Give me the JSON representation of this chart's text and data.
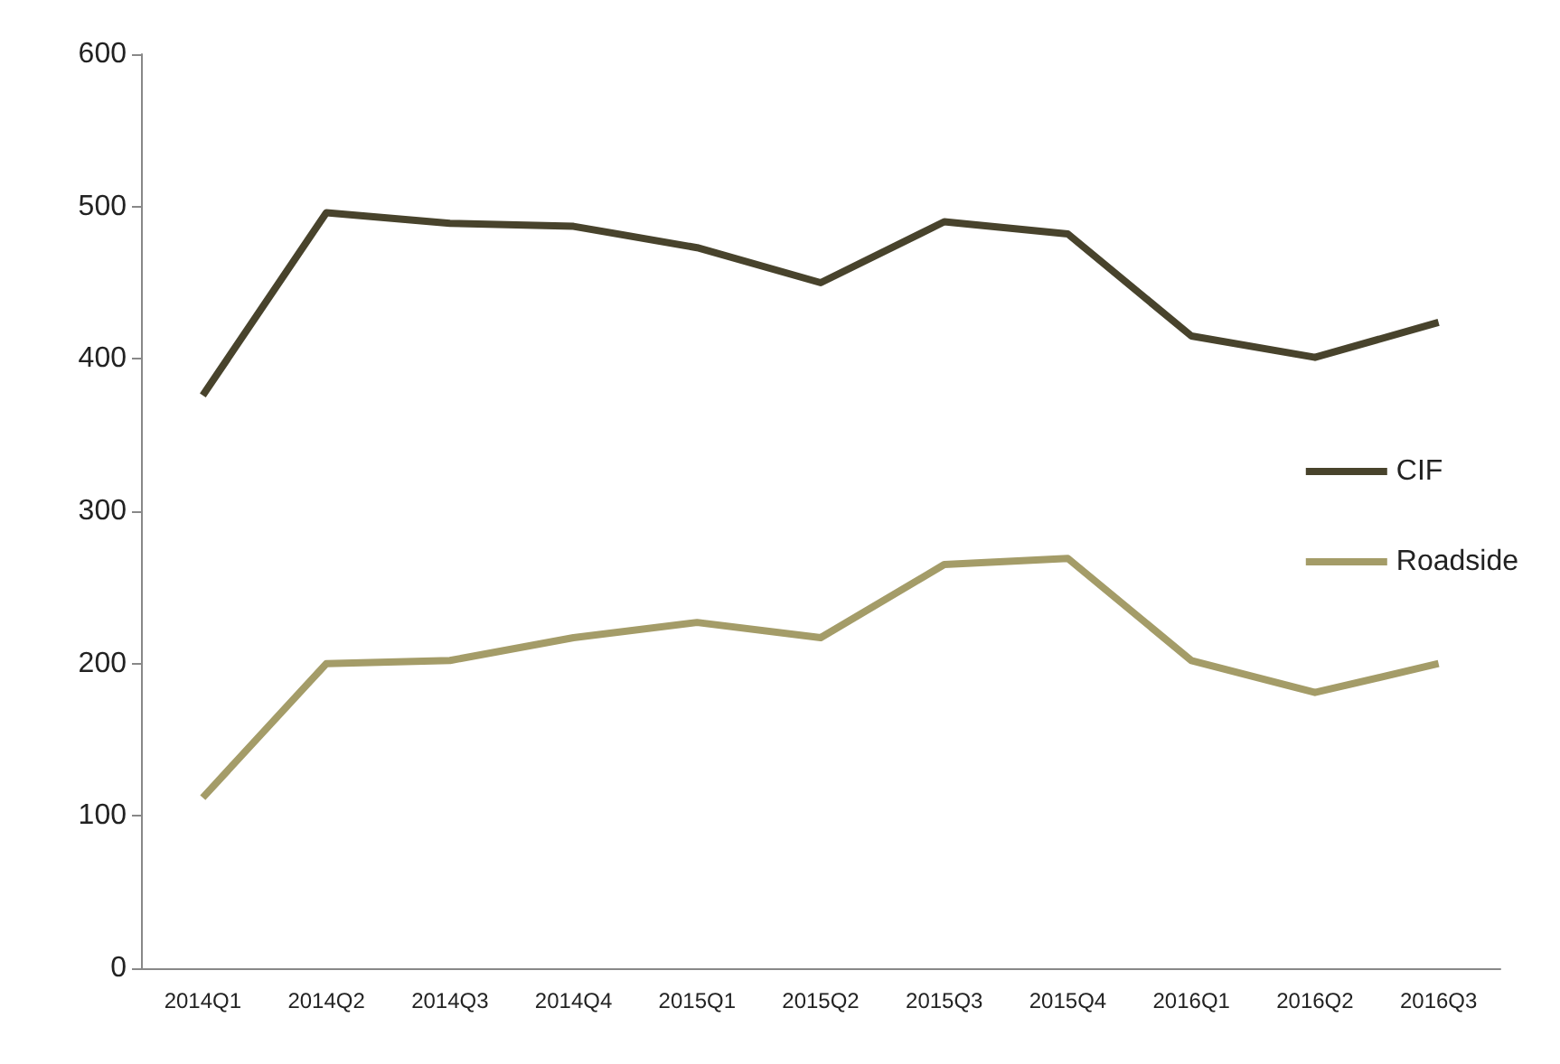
{
  "chart_data": {
    "type": "line",
    "categories": [
      "2014Q1",
      "2014Q2",
      "2014Q3",
      "2014Q4",
      "2015Q1",
      "2015Q2",
      "2015Q3",
      "2015Q4",
      "2016Q1",
      "2016Q2",
      "2016Q3"
    ],
    "series": [
      {
        "name": "CIF",
        "color": "#48432c",
        "values": [
          376,
          496,
          489,
          487,
          473,
          450,
          490,
          482,
          415,
          401,
          424
        ]
      },
      {
        "name": "Roadside",
        "color": "#a49c68",
        "values": [
          112,
          200,
          202,
          217,
          227,
          217,
          265,
          269,
          202,
          181,
          200
        ]
      }
    ],
    "ylim": [
      0,
      600
    ],
    "yticks": [
      0,
      100,
      200,
      300,
      400,
      500,
      600
    ],
    "grid": false,
    "legend": "right",
    "marker": "none",
    "line_style": "solid"
  }
}
